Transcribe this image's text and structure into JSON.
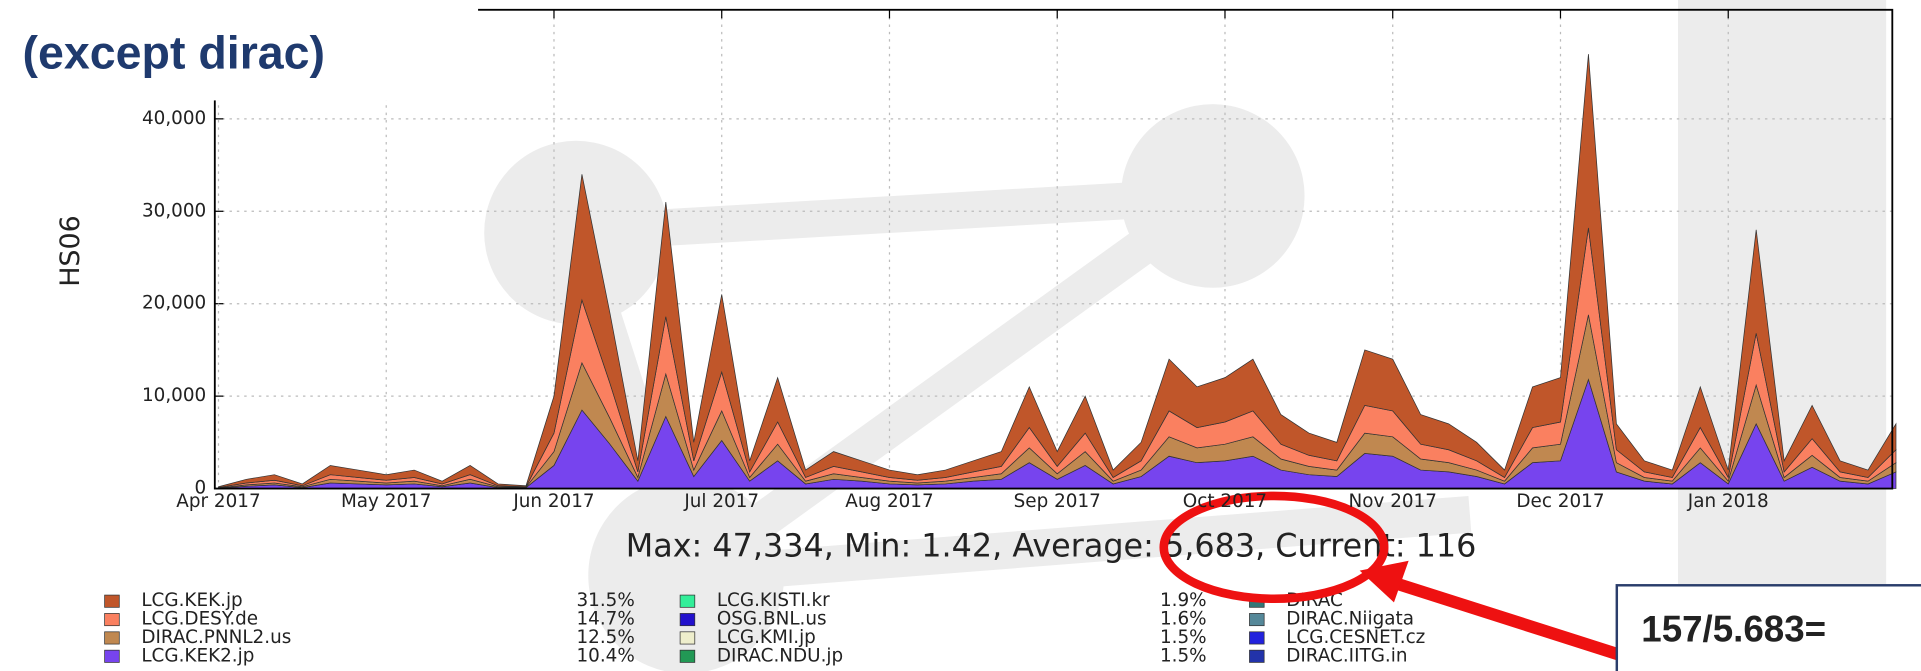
{
  "chart_data": {
    "type": "stacked_area",
    "title": "(except dirac)",
    "y_label": "HS06",
    "stats": "Max: 47,334, Min: 1.42, Average: 5,683, Current: 116",
    "note": "157/5.683=",
    "categories": [
      "Apr 2017",
      null,
      null,
      null,
      null,
      null,
      "May 2017",
      null,
      null,
      null,
      null,
      null,
      "Jun 2017",
      null,
      null,
      null,
      null,
      null,
      "Jul 2017",
      null,
      null,
      null,
      null,
      null,
      "Aug 2017",
      null,
      null,
      null,
      null,
      null,
      "Sep 2017",
      null,
      null,
      null,
      null,
      null,
      "Oct 2017",
      null,
      null,
      null,
      null,
      null,
      "Nov 2017",
      null,
      null,
      null,
      null,
      null,
      "Dec 2017",
      null,
      null,
      null,
      null,
      null,
      "Jan 2018",
      null,
      null,
      null,
      null,
      null,
      null
    ],
    "series": [
      {
        "name": "LCG.KEK.jp",
        "share": "31.5%",
        "color": "#c0562a",
        "values": [
          80,
          400,
          600,
          200,
          1000,
          800,
          600,
          800,
          300,
          1000,
          200,
          100,
          4000,
          13600,
          7600,
          1200,
          12400,
          2000,
          8400,
          1200,
          4800,
          800,
          1600,
          1200,
          800,
          600,
          800,
          1200,
          1600,
          4400,
          1600,
          4000,
          800,
          2000,
          5600,
          4400,
          4800,
          5600,
          3200,
          2400,
          2000,
          6000,
          5600,
          3200,
          2800,
          2000,
          800,
          4400,
          4800,
          18800,
          2800,
          1200,
          800,
          4400,
          800,
          11200,
          1200,
          3600,
          1200,
          800,
          2800
        ]
      },
      {
        "name": "LCG.DESY.de",
        "share": "14.7%",
        "color": "#fa8060",
        "values": [
          40,
          200,
          300,
          100,
          500,
          400,
          300,
          400,
          200,
          500,
          100,
          50,
          2000,
          6800,
          3800,
          600,
          6200,
          1000,
          4200,
          600,
          2400,
          400,
          800,
          600,
          400,
          300,
          400,
          600,
          800,
          2200,
          800,
          2000,
          400,
          1000,
          2800,
          2200,
          2400,
          2800,
          1600,
          1200,
          1000,
          3000,
          2800,
          1600,
          1400,
          1000,
          400,
          2200,
          2400,
          9400,
          1400,
          600,
          400,
          2200,
          400,
          5600,
          600,
          1800,
          600,
          400,
          1400
        ]
      },
      {
        "name": "DIRAC.PNNL2.us",
        "share": "12.5%",
        "color": "#c08850",
        "values": [
          30,
          150,
          200,
          100,
          400,
          300,
          200,
          300,
          100,
          400,
          100,
          50,
          1500,
          5100,
          2800,
          400,
          4600,
          700,
          3200,
          400,
          1800,
          300,
          600,
          400,
          300,
          200,
          300,
          400,
          600,
          1600,
          600,
          1500,
          300,
          700,
          2100,
          1600,
          1800,
          2100,
          1200,
          900,
          700,
          2200,
          2100,
          1200,
          1000,
          700,
          300,
          1600,
          1800,
          7000,
          1000,
          400,
          300,
          1600,
          300,
          4200,
          400,
          1300,
          400,
          300,
          1000
        ]
      },
      {
        "name": "LCG.KEK2.jp",
        "share": "10.4%",
        "color": "#7744ee",
        "values": [
          50,
          250,
          400,
          100,
          600,
          500,
          400,
          500,
          200,
          600,
          100,
          100,
          2500,
          8500,
          4800,
          800,
          7800,
          1300,
          5200,
          800,
          3000,
          500,
          1000,
          800,
          500,
          400,
          500,
          800,
          1000,
          2800,
          1000,
          2500,
          500,
          1300,
          3500,
          2800,
          3000,
          3500,
          2000,
          1500,
          1300,
          3800,
          3500,
          2000,
          1800,
          1300,
          500,
          2800,
          3000,
          11800,
          1800,
          800,
          500,
          2800,
          500,
          7000,
          800,
          2300,
          800,
          500,
          1800
        ]
      }
    ],
    "other_legend": [
      {
        "name": "LCG.KISTI.kr",
        "share": "1.9%",
        "color": "#33ee99"
      },
      {
        "name": "OSG.BNL.us",
        "share": "1.6%",
        "color": "#2211cc"
      },
      {
        "name": "LCG.KMI.jp",
        "share": "1.5%",
        "color": "#eeeecc"
      },
      {
        "name": "DIRAC.NDU.jp",
        "share": "1.5%",
        "color": "#229955"
      },
      {
        "name": "DIRAC",
        "color": "#337777"
      },
      {
        "name": "DIRAC.Niigata",
        "color": "#558899"
      },
      {
        "name": "LCG.CESNET.cz",
        "color": "#2222dd"
      },
      {
        "name": "DIRAC.IITG.in",
        "color": "#2233aa"
      }
    ],
    "ylim": [
      0,
      51800
    ],
    "yticks": [
      0,
      {
        "value": 10000,
        "label": "10,000"
      },
      {
        "value": 20000,
        "label": "20,000"
      },
      {
        "value": 30000,
        "label": "30,000"
      },
      {
        "value": 40000,
        "label": "40,000"
      }
    ],
    "grid": true
  }
}
